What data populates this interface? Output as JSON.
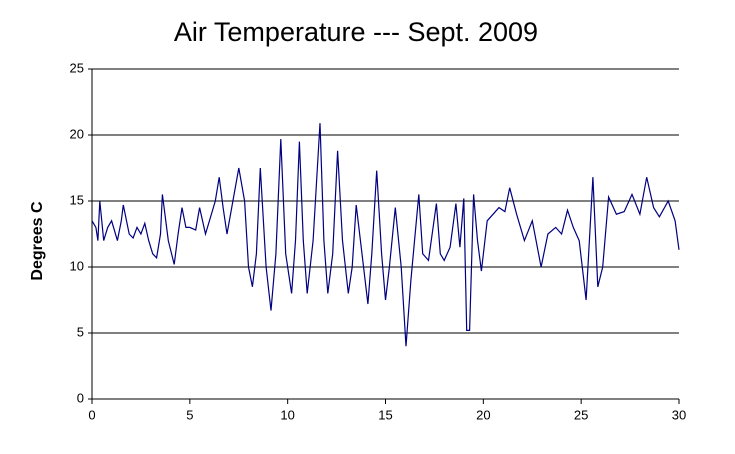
{
  "chart_data": {
    "type": "line",
    "title": "Air Temperature --- Sept. 2009",
    "y_label": "Degrees C",
    "xlim": [
      0,
      30
    ],
    "xticks": [
      0,
      5,
      10,
      15,
      20,
      25,
      30
    ],
    "ylim": [
      0,
      25
    ],
    "yticks": [
      0,
      5,
      10,
      15,
      20,
      25
    ],
    "grid": true,
    "series": [
      {
        "name": "Air Temperature",
        "color": "#000080",
        "x": [
          0,
          0.2,
          0.3,
          0.4,
          0.6,
          0.8,
          1.0,
          1.3,
          1.5,
          1.6,
          1.9,
          2.1,
          2.3,
          2.5,
          2.7,
          2.9,
          3.1,
          3.3,
          3.5,
          3.6,
          3.9,
          4.2,
          4.4,
          4.6,
          4.8,
          5.0,
          5.3,
          5.5,
          5.8,
          6.1,
          6.3,
          6.5,
          6.7,
          6.9,
          7.2,
          7.5,
          7.8,
          8.0,
          8.2,
          8.4,
          8.6,
          8.9,
          9.15,
          9.4,
          9.65,
          9.9,
          10.2,
          10.4,
          10.6,
          10.8,
          11.0,
          11.3,
          11.65,
          11.85,
          12.05,
          12.3,
          12.55,
          12.8,
          13.1,
          13.3,
          13.5,
          13.8,
          14.1,
          14.3,
          14.55,
          14.8,
          15.0,
          15.2,
          15.5,
          15.8,
          16.05,
          16.3,
          16.7,
          16.9,
          17.2,
          17.6,
          17.8,
          18.0,
          18.3,
          18.6,
          18.8,
          19.0,
          19.15,
          19.3,
          19.5,
          19.7,
          19.9,
          20.2,
          20.5,
          20.8,
          21.1,
          21.35,
          21.7,
          22.1,
          22.5,
          22.95,
          23.3,
          23.7,
          24.0,
          24.3,
          24.6,
          24.9,
          25.25,
          25.6,
          25.85,
          26.1,
          26.4,
          26.8,
          27.2,
          27.6,
          28.0,
          28.35,
          28.7,
          29.0,
          29.45,
          29.8,
          30.0
        ],
        "values": [
          13.5,
          13,
          12,
          15,
          12,
          13,
          13.5,
          12,
          13.5,
          14.7,
          12.5,
          12.2,
          13,
          12.5,
          13.3,
          12,
          11,
          10.7,
          12.5,
          15.5,
          12,
          10.2,
          12.5,
          14.5,
          13,
          13,
          12.8,
          14.5,
          12.5,
          14,
          15,
          16.8,
          14.5,
          12.5,
          15,
          17.5,
          15,
          10,
          8.5,
          11,
          17.5,
          10,
          6.7,
          11,
          19.7,
          11,
          8,
          12,
          19.5,
          12,
          8,
          12,
          20.9,
          12,
          8,
          11,
          18.8,
          12,
          8,
          10,
          14.7,
          11,
          7.2,
          11,
          17.3,
          11,
          7.5,
          10,
          14.5,
          10,
          4,
          9,
          15.5,
          11,
          10.5,
          14.8,
          11,
          10.5,
          11.5,
          14.8,
          11.5,
          15.2,
          5.2,
          5.2,
          15.5,
          12,
          9.7,
          13.5,
          14,
          14.5,
          14.2,
          16,
          14,
          12,
          13.5,
          10,
          12.5,
          13,
          12.5,
          14.3,
          13,
          12,
          7.5,
          16.8,
          8.5,
          10,
          15.3,
          14,
          14.2,
          15.5,
          14,
          16.8,
          14.5,
          13.8,
          15,
          13.5,
          11.3
        ]
      }
    ]
  }
}
